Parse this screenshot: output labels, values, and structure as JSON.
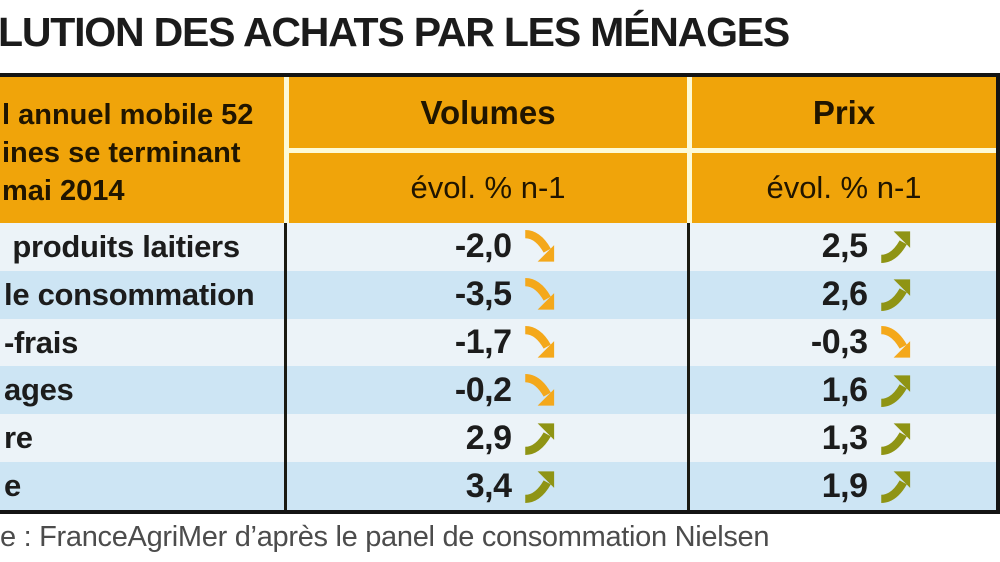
{
  "title": "LUTION DES ACHATS PAR LES MÉNAGES",
  "table": {
    "corner_lines": [
      "l annuel mobile 52",
      "ines se terminant",
      "mai 2014"
    ],
    "col_groups": [
      {
        "label": "Volumes",
        "sub": "évol. % n-1"
      },
      {
        "label": "Prix",
        "sub": "évol. % n-1"
      }
    ],
    "rows": [
      {
        "label": " produits laitiers",
        "volume": "-2,0",
        "volume_trend": "down",
        "prix": "2,5",
        "prix_trend": "up"
      },
      {
        "label": "le consommation",
        "volume": "-3,5",
        "volume_trend": "down",
        "prix": "2,6",
        "prix_trend": "up"
      },
      {
        "label": "-frais",
        "volume": "-1,7",
        "volume_trend": "down",
        "prix": "-0,3",
        "prix_trend": "down"
      },
      {
        "label": "ages",
        "volume": "-0,2",
        "volume_trend": "down",
        "prix": "1,6",
        "prix_trend": "up"
      },
      {
        "label": "re",
        "volume": "2,9",
        "volume_trend": "up",
        "prix": "1,3",
        "prix_trend": "up"
      },
      {
        "label": "e",
        "volume": "3,4",
        "volume_trend": "up",
        "prix": "1,9",
        "prix_trend": "up"
      }
    ]
  },
  "source": "e : FranceAgriMer d’après le panel de consommation Nielsen",
  "colors": {
    "header_bg": "#F0A40A",
    "grid_cream": "#FDFAD7",
    "row_light": "#ECF3F8",
    "row_dark": "#CDE5F4",
    "up": "#8F9414",
    "down": "#F4A81B",
    "source_ink": "#4C4C4C"
  },
  "chart_data": {
    "type": "table",
    "title": "LUTION DES ACHATS PAR LES MÉNAGES",
    "period_note": "l annuel mobile 52 ines se terminant mai 2014",
    "categories": [
      "produits laitiers",
      "le consommation",
      "-frais",
      "ages",
      "re",
      "e"
    ],
    "series": [
      {
        "name": "Volumes évol. % n-1",
        "values": [
          -2.0,
          -3.5,
          -1.7,
          -0.2,
          2.9,
          3.4
        ],
        "trends": [
          "down",
          "down",
          "down",
          "down",
          "up",
          "up"
        ]
      },
      {
        "name": "Prix évol. % n-1",
        "values": [
          2.5,
          2.6,
          -0.3,
          1.6,
          1.3,
          1.9
        ],
        "trends": [
          "up",
          "up",
          "down",
          "up",
          "up",
          "up"
        ]
      }
    ],
    "source": "e : FranceAgriMer d’après le panel de consommation Nielsen"
  }
}
